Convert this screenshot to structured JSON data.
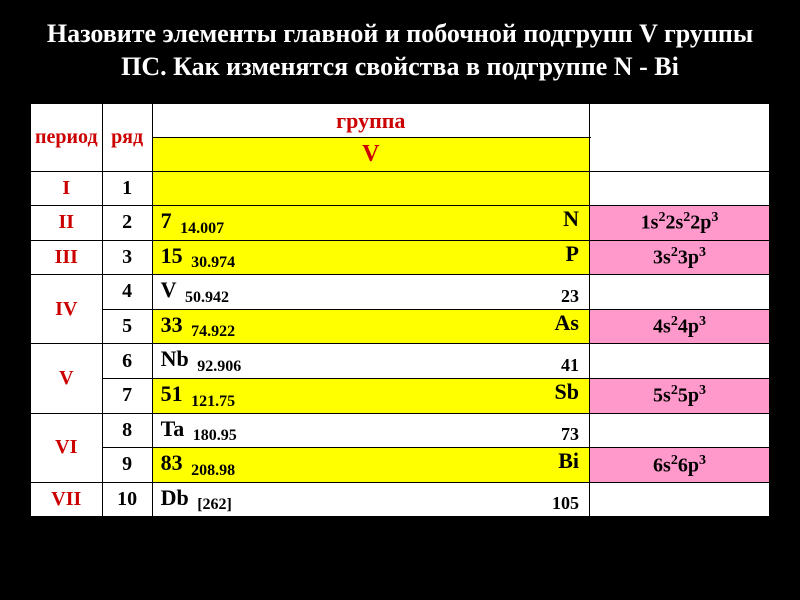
{
  "title": "Назовите элементы главной и побочной подгрупп V группы ПС. Как изменятся свойства в подгруппе N - Bi",
  "headers": {
    "period": "период",
    "row": "ряд",
    "group": "группа",
    "groupnum": "V"
  },
  "colors": {
    "background": "#000000",
    "title_text": "#ffffff",
    "table_bg": "#ffffff",
    "yellow": "#ffff00",
    "pink": "#ff99cc",
    "red_text": "#cc0000",
    "black_text": "#000000"
  },
  "rows": [
    {
      "period": "I",
      "rownums": [
        "1"
      ],
      "cells": [
        {
          "bg": "yellow",
          "content": ""
        }
      ],
      "config": ""
    },
    {
      "period": "II",
      "rownums": [
        "2"
      ],
      "cells": [
        {
          "bg": "yellow",
          "z": "7",
          "mass": "14.007",
          "sym": "N"
        }
      ],
      "config": "1s²2s²2p³"
    },
    {
      "period": "III",
      "rownums": [
        "3"
      ],
      "cells": [
        {
          "bg": "yellow",
          "z": "15",
          "mass": "30.974",
          "sym": "P"
        }
      ],
      "config": "3s²3p³"
    },
    {
      "period": "IV",
      "rownums": [
        "4",
        "5"
      ],
      "cells": [
        {
          "bg": "white",
          "sym": "V",
          "mass": "50.942",
          "right": "23"
        },
        {
          "bg": "yellow",
          "z": "33",
          "mass": "74.922",
          "sym": "As"
        }
      ],
      "configs": [
        "",
        "4s²4p³"
      ]
    },
    {
      "period": "V",
      "rownums": [
        "6",
        "7"
      ],
      "cells": [
        {
          "bg": "white",
          "sym": "Nb",
          "mass": "92.906",
          "right": "41"
        },
        {
          "bg": "yellow",
          "z": "51",
          "mass": "121.75",
          "sym": "Sb"
        }
      ],
      "configs": [
        "",
        "5s²5p³"
      ]
    },
    {
      "period": "VI",
      "rownums": [
        "8",
        "9"
      ],
      "cells": [
        {
          "bg": "white",
          "sym": "Ta",
          "mass": "180.95",
          "right": "73"
        },
        {
          "bg": "yellow",
          "z": "83",
          "mass": "208.98",
          "sym": "Bi"
        }
      ],
      "configs": [
        "",
        "6s²6p³"
      ]
    },
    {
      "period": "VII",
      "rownums": [
        "10"
      ],
      "cells": [
        {
          "bg": "white",
          "sym": "Db",
          "mass": "[262]",
          "right": "105"
        }
      ],
      "config": ""
    }
  ]
}
